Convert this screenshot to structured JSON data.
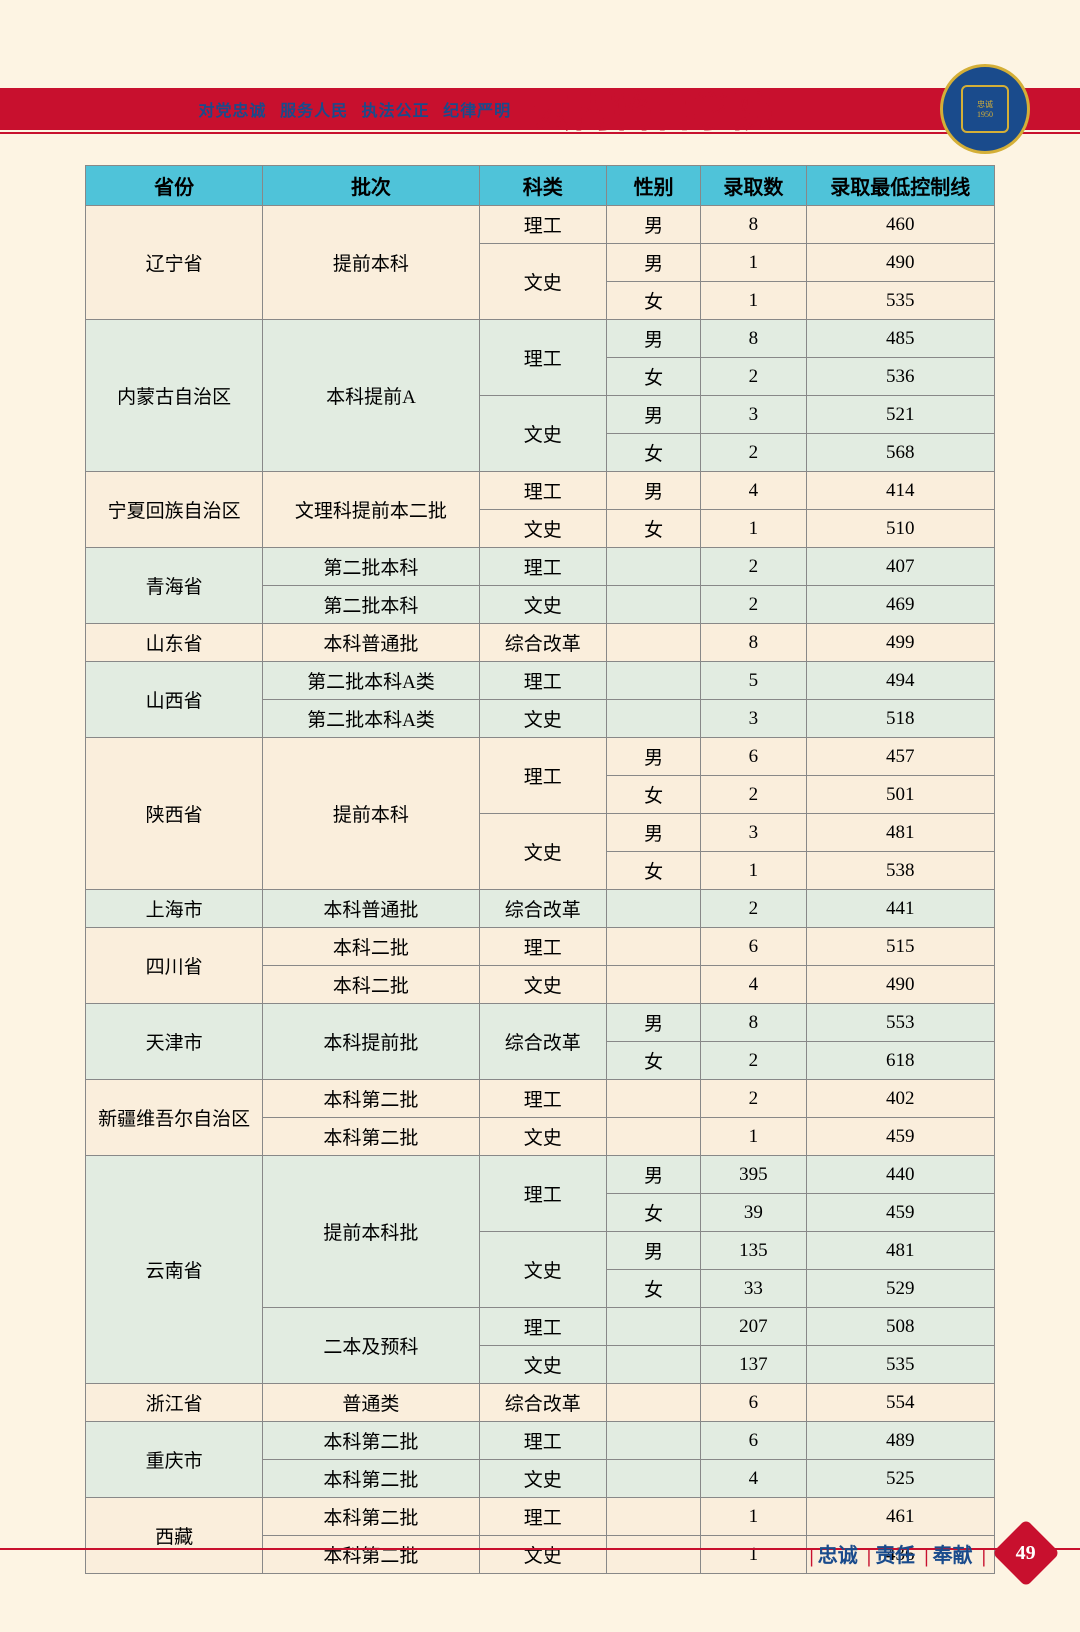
{
  "header": {
    "motto_parts": [
      "对党忠诚",
      "服务人民",
      "执法公正",
      "纪律严明"
    ],
    "college_name": "云南警官学院"
  },
  "footer": {
    "values": [
      "忠诚",
      "责任",
      "奉献"
    ],
    "page_number": "49"
  },
  "table": {
    "columns": [
      "省份",
      "批次",
      "科类",
      "性别",
      "录取数",
      "录取最低控制线"
    ],
    "groups": [
      {
        "province": "辽宁省",
        "bg": "cream",
        "batch": "提前本科",
        "batch_rows": 3,
        "subjects": [
          {
            "subject": "理工",
            "rows": [
              {
                "gender": "男",
                "count": "8",
                "score": "460"
              }
            ]
          },
          {
            "subject": "文史",
            "rows": [
              {
                "gender": "男",
                "count": "1",
                "score": "490"
              },
              {
                "gender": "女",
                "count": "1",
                "score": "535"
              }
            ]
          }
        ]
      },
      {
        "province": "内蒙古自治区",
        "bg": "green",
        "batch": "本科提前A",
        "batch_rows": 4,
        "subjects": [
          {
            "subject": "理工",
            "rows": [
              {
                "gender": "男",
                "count": "8",
                "score": "485"
              },
              {
                "gender": "女",
                "count": "2",
                "score": "536"
              }
            ]
          },
          {
            "subject": "文史",
            "rows": [
              {
                "gender": "男",
                "count": "3",
                "score": "521"
              },
              {
                "gender": "女",
                "count": "2",
                "score": "568"
              }
            ]
          }
        ]
      },
      {
        "province": "宁夏回族自治区",
        "bg": "cream",
        "batch": "文理科提前本二批",
        "batch_rows": 2,
        "subjects": [
          {
            "subject": "理工",
            "rows": [
              {
                "gender": "男",
                "count": "4",
                "score": "414"
              }
            ]
          },
          {
            "subject": "文史",
            "rows": [
              {
                "gender": "女",
                "count": "1",
                "score": "510"
              }
            ]
          }
        ]
      },
      {
        "province": "青海省",
        "bg": "green",
        "batches": [
          {
            "batch": "第二批本科",
            "subject": "理工",
            "gender": "",
            "count": "2",
            "score": "407"
          },
          {
            "batch": "第二批本科",
            "subject": "文史",
            "gender": "",
            "count": "2",
            "score": "469"
          }
        ]
      },
      {
        "province": "山东省",
        "bg": "cream",
        "single": true,
        "batch": "本科普通批",
        "subject": "综合改革",
        "gender": "",
        "count": "8",
        "score": "499"
      },
      {
        "province": "山西省",
        "bg": "green",
        "batches": [
          {
            "batch": "第二批本科A类",
            "subject": "理工",
            "gender": "",
            "count": "5",
            "score": "494"
          },
          {
            "batch": "第二批本科A类",
            "subject": "文史",
            "gender": "",
            "count": "3",
            "score": "518"
          }
        ]
      },
      {
        "province": "陕西省",
        "bg": "cream",
        "batch": "提前本科",
        "batch_rows": 4,
        "subjects": [
          {
            "subject": "理工",
            "rows": [
              {
                "gender": "男",
                "count": "6",
                "score": "457"
              },
              {
                "gender": "女",
                "count": "2",
                "score": "501"
              }
            ]
          },
          {
            "subject": "文史",
            "rows": [
              {
                "gender": "男",
                "count": "3",
                "score": "481"
              },
              {
                "gender": "女",
                "count": "1",
                "score": "538"
              }
            ]
          }
        ]
      },
      {
        "province": "上海市",
        "bg": "green",
        "single": true,
        "batch": "本科普通批",
        "subject": "综合改革",
        "gender": "",
        "count": "2",
        "score": "441"
      },
      {
        "province": "四川省",
        "bg": "cream",
        "batches": [
          {
            "batch": "本科二批",
            "subject": "理工",
            "gender": "",
            "count": "6",
            "score": "515"
          },
          {
            "batch": "本科二批",
            "subject": "文史",
            "gender": "",
            "count": "4",
            "score": "490"
          }
        ]
      },
      {
        "province": "天津市",
        "bg": "green",
        "batch": "本科提前批",
        "batch_rows": 2,
        "subjects": [
          {
            "subject": "综合改革",
            "rows": [
              {
                "gender": "男",
                "count": "8",
                "score": "553"
              },
              {
                "gender": "女",
                "count": "2",
                "score": "618"
              }
            ]
          }
        ]
      },
      {
        "province": "新疆维吾尔自治区",
        "bg": "cream",
        "batches": [
          {
            "batch": "本科第二批",
            "subject": "理工",
            "gender": "",
            "count": "2",
            "score": "402"
          },
          {
            "batch": "本科第二批",
            "subject": "文史",
            "gender": "",
            "count": "1",
            "score": "459"
          }
        ]
      },
      {
        "province": "云南省",
        "bg": "green",
        "province_rows": 6,
        "multi_batch": [
          {
            "batch": "提前本科批",
            "batch_rows": 4,
            "subjects": [
              {
                "subject": "理工",
                "rows": [
                  {
                    "gender": "男",
                    "count": "395",
                    "score": "440"
                  },
                  {
                    "gender": "女",
                    "count": "39",
                    "score": "459"
                  }
                ]
              },
              {
                "subject": "文史",
                "rows": [
                  {
                    "gender": "男",
                    "count": "135",
                    "score": "481"
                  },
                  {
                    "gender": "女",
                    "count": "33",
                    "score": "529"
                  }
                ]
              }
            ]
          },
          {
            "batch": "二本及预科",
            "batch_rows": 2,
            "subjects": [
              {
                "subject": "理工",
                "rows": [
                  {
                    "gender": "",
                    "count": "207",
                    "score": "508"
                  }
                ]
              },
              {
                "subject": "文史",
                "rows": [
                  {
                    "gender": "",
                    "count": "137",
                    "score": "535"
                  }
                ]
              }
            ]
          }
        ]
      },
      {
        "province": "浙江省",
        "bg": "cream",
        "single": true,
        "batch": "普通类",
        "subject": "综合改革",
        "gender": "",
        "count": "6",
        "score": "554"
      },
      {
        "province": "重庆市",
        "bg": "green",
        "batches": [
          {
            "batch": "本科第二批",
            "subject": "理工",
            "gender": "",
            "count": "6",
            "score": "489"
          },
          {
            "batch": "本科第二批",
            "subject": "文史",
            "gender": "",
            "count": "4",
            "score": "525"
          }
        ]
      },
      {
        "province": "西藏",
        "bg": "cream",
        "batches": [
          {
            "batch": "本科第二批",
            "subject": "理工",
            "gender": "",
            "count": "1",
            "score": "461"
          },
          {
            "batch": "本科第二批",
            "subject": "文史",
            "gender": "",
            "count": "1",
            "score": "436"
          }
        ]
      }
    ]
  }
}
